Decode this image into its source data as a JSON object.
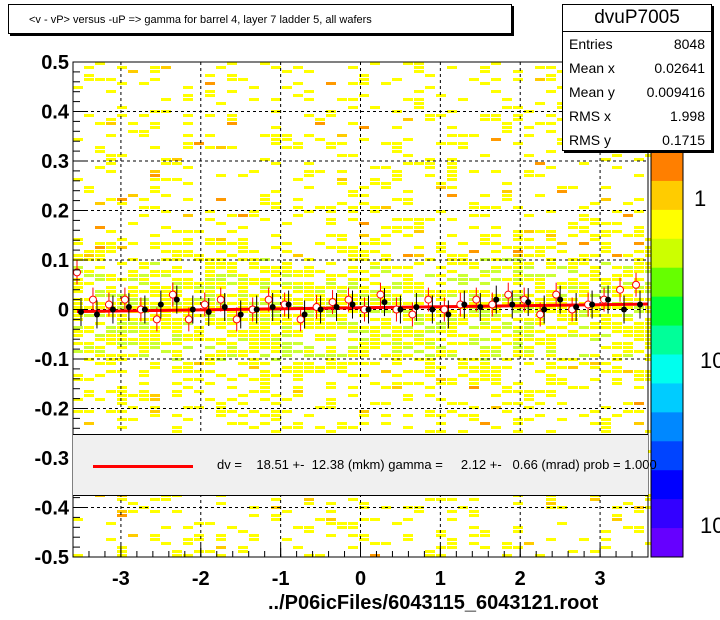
{
  "title": "<v - vP>       versus  -uP =>  gamma for barrel 4, layer 7 ladder 5, all wafers",
  "footer": "../P06icFiles/6043115_6043121.root",
  "stats": {
    "name": "dvuP7005",
    "rows": [
      {
        "label": "Entries",
        "value": "8048"
      },
      {
        "label": "Mean x",
        "value": "0.02641"
      },
      {
        "label": "Mean y",
        "value": "0.009416"
      },
      {
        "label": "RMS x",
        "value": "1.998"
      },
      {
        "label": "RMS y",
        "value": "0.1715"
      }
    ]
  },
  "fit": {
    "text": "dv =    18.51 +-  12.38 (mkm) gamma =     2.12 +-   0.66 (mrad) prob = 1.000",
    "color": "#ff0000"
  },
  "palette": {
    "labels": [
      "1",
      "10",
      "10"
    ],
    "colors": [
      "#ff7f00",
      "#ffcc00",
      "#ffff00",
      "#ccff00",
      "#66ff00",
      "#00ff33",
      "#00ff99",
      "#00ffee",
      "#00ccff",
      "#0088ff",
      "#0044ff",
      "#0000ff",
      "#3300ff",
      "#6600ff"
    ]
  },
  "chart_data": {
    "type": "heatmap",
    "xlim": [
      -3.6,
      3.6
    ],
    "ylim": [
      -0.5,
      0.5
    ],
    "x_ticks": [
      "-3",
      "-2",
      "-1",
      "0",
      "1",
      "2",
      "3"
    ],
    "y_ticks": [
      "-0.5",
      "-0.4",
      "-0.3",
      "-0.2",
      "-0.1",
      "0",
      "0.1",
      "0.2",
      "0.3",
      "0.4",
      "0.5"
    ],
    "grid": true,
    "fit_line": {
      "x": [
        -3.55,
        3.6
      ],
      "y": [
        -0.004,
        0.011
      ]
    },
    "profile_black": {
      "x": [
        -3.5,
        -3.3,
        -3.1,
        -2.9,
        -2.7,
        -2.5,
        -2.3,
        -2.1,
        -1.9,
        -1.7,
        -1.5,
        -1.3,
        -1.1,
        -0.9,
        -0.7,
        -0.5,
        -0.3,
        -0.1,
        0.1,
        0.3,
        0.5,
        0.7,
        0.9,
        1.1,
        1.3,
        1.5,
        1.7,
        1.9,
        2.1,
        2.3,
        2.5,
        2.7,
        2.9,
        3.1,
        3.3,
        3.5
      ],
      "y": [
        -0.005,
        -0.01,
        0.0,
        0.005,
        0.0,
        0.01,
        0.02,
        0.0,
        -0.005,
        0.005,
        -0.01,
        0.0,
        0.005,
        0.01,
        -0.01,
        0.0,
        0.005,
        0.01,
        0.0,
        0.015,
        0.0,
        0.005,
        0.0,
        -0.01,
        0.01,
        0.005,
        0.02,
        0.01,
        0.015,
        0.0,
        0.02,
        0.005,
        0.01,
        0.02,
        0.0,
        0.01
      ]
    },
    "profile_red": {
      "x": [
        -3.55,
        -3.35,
        -3.15,
        -2.95,
        -2.75,
        -2.55,
        -2.35,
        -2.15,
        -1.95,
        -1.75,
        -1.55,
        -1.35,
        -1.15,
        -0.95,
        -0.75,
        -0.55,
        -0.35,
        -0.15,
        0.05,
        0.25,
        0.45,
        0.65,
        0.85,
        1.05,
        1.25,
        1.45,
        1.65,
        1.85,
        2.05,
        2.25,
        2.45,
        2.65,
        2.85,
        3.05,
        3.25,
        3.45
      ],
      "y": [
        0.075,
        0.02,
        0.01,
        0.02,
        0.0,
        -0.02,
        0.03,
        -0.02,
        0.01,
        0.02,
        -0.02,
        0.0,
        0.02,
        0.01,
        -0.02,
        0.005,
        0.015,
        0.02,
        0.0,
        0.03,
        0.0,
        -0.01,
        0.02,
        0.0,
        0.01,
        0.02,
        0.01,
        0.03,
        0.02,
        -0.01,
        0.03,
        0.0,
        0.01,
        0.02,
        0.04,
        0.05
      ]
    }
  }
}
